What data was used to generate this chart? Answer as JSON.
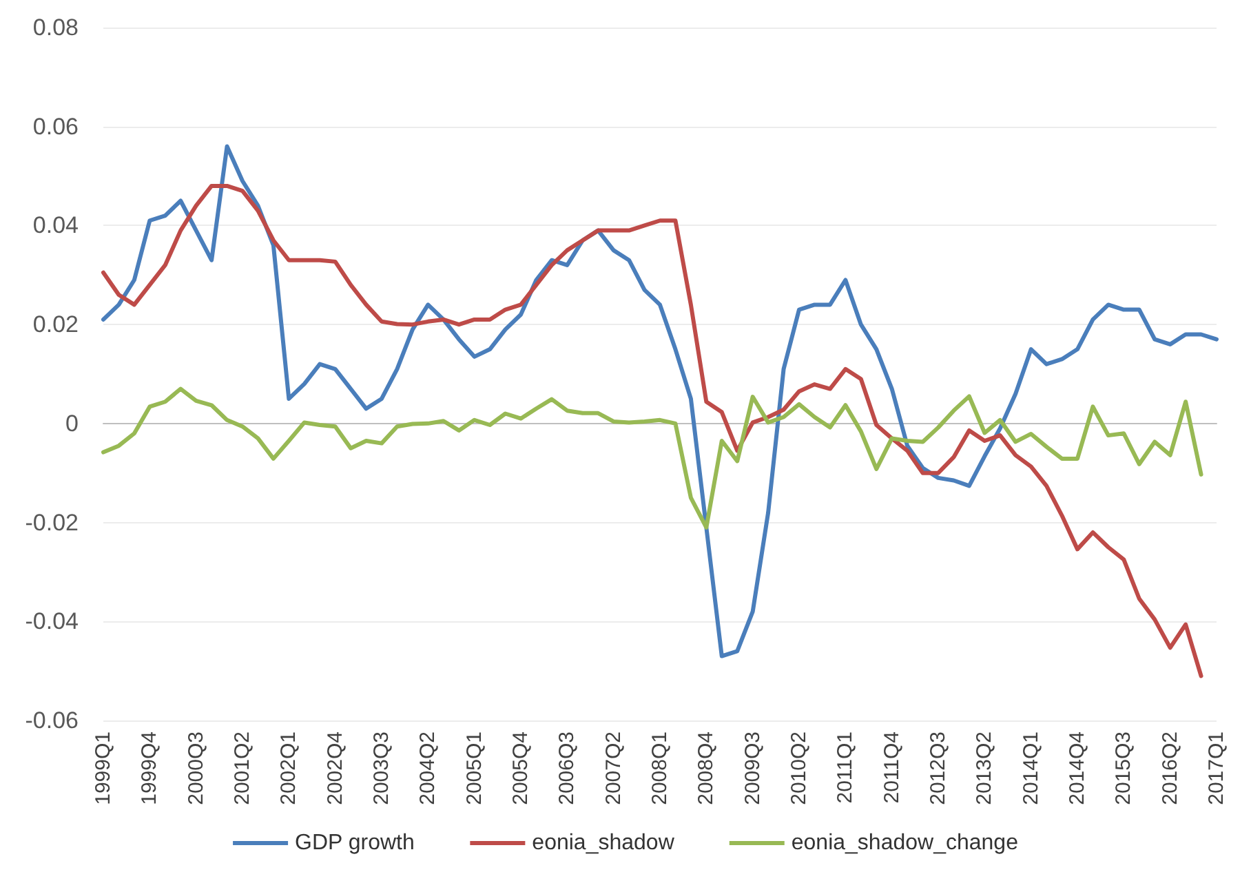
{
  "chart_data": {
    "type": "line",
    "categories": [
      "1999Q1",
      null,
      null,
      "1999Q4",
      null,
      null,
      "2000Q3",
      null,
      null,
      "2001Q2",
      null,
      null,
      "2002Q1",
      null,
      null,
      "2002Q4",
      null,
      null,
      "2003Q3",
      null,
      null,
      "2004Q2",
      null,
      null,
      "2005Q1",
      null,
      null,
      "2005Q4",
      null,
      null,
      "2006Q3",
      null,
      null,
      "2007Q2",
      null,
      null,
      "2008Q1",
      null,
      null,
      "2008Q4",
      null,
      null,
      "2009Q3",
      null,
      null,
      "2010Q2",
      null,
      null,
      "2011Q1",
      null,
      null,
      "2011Q4",
      null,
      null,
      "2012Q3",
      null,
      null,
      "2013Q2",
      null,
      null,
      "2014Q1",
      null,
      null,
      "2014Q4",
      null,
      null,
      "2015Q3",
      null,
      null,
      "2016Q2",
      null,
      null,
      "2017Q1"
    ],
    "series": [
      {
        "name": "GDP growth",
        "color": "#4a7ebb",
        "values": [
          0.021,
          0.024,
          0.029,
          0.041,
          0.042,
          0.045,
          0.039,
          0.033,
          0.056,
          0.049,
          0.044,
          0.036,
          0.005,
          0.008,
          0.012,
          0.011,
          0.007,
          0.003,
          0.005,
          0.011,
          0.019,
          0.024,
          0.021,
          0.017,
          0.0135,
          0.015,
          0.019,
          0.022,
          0.029,
          0.033,
          0.032,
          0.037,
          0.039,
          0.035,
          0.033,
          0.027,
          0.024,
          0.015,
          0.005,
          -0.021,
          -0.047,
          -0.046,
          -0.038,
          -0.018,
          0.011,
          0.023,
          0.024,
          0.024,
          0.029,
          0.02,
          0.015,
          0.007,
          -0.0045,
          -0.009,
          -0.011,
          -0.0115,
          -0.0126,
          -0.0066,
          -0.001,
          0.006,
          0.015,
          0.012,
          0.013,
          0.015,
          0.021,
          0.024,
          0.023,
          0.023,
          0.017,
          0.016,
          0.018,
          0.018,
          0.017
        ]
      },
      {
        "name": "eonia_shadow",
        "color": "#be4b48",
        "values": [
          0.0305,
          0.026,
          0.024,
          0.028,
          0.032,
          0.039,
          0.044,
          0.048,
          0.048,
          0.047,
          0.043,
          0.037,
          0.033,
          0.033,
          0.033,
          0.0327,
          0.028,
          0.024,
          0.0206,
          0.0201,
          0.02,
          0.0206,
          0.021,
          0.02,
          0.021,
          0.021,
          0.023,
          0.024,
          0.028,
          0.032,
          0.035,
          0.037,
          0.039,
          0.039,
          0.039,
          0.04,
          0.041,
          0.041,
          0.024,
          0.0044,
          0.0023,
          -0.0055,
          0.0002,
          0.0013,
          0.0028,
          0.0065,
          0.0079,
          0.007,
          0.011,
          0.009,
          -0.0003,
          -0.003,
          -0.0055,
          -0.01,
          -0.01,
          -0.0068,
          -0.0014,
          -0.0035,
          -0.0024,
          -0.0064,
          -0.0087,
          -0.0126,
          -0.0186,
          -0.0254,
          -0.022,
          -0.025,
          -0.0275,
          -0.0354,
          -0.0396,
          -0.0453,
          -0.0406,
          -0.051,
          null
        ]
      },
      {
        "name": "eonia_shadow_change",
        "color": "#98b954",
        "values": [
          -0.0058,
          -0.0045,
          -0.002,
          0.0034,
          0.0044,
          0.007,
          0.0046,
          0.0037,
          0.0007,
          -0.0006,
          -0.003,
          -0.0071,
          -0.0035,
          0.0002,
          -0.0003,
          -0.0006,
          -0.005,
          -0.0035,
          -0.004,
          -0.0006,
          -0.0001,
          0,
          0.0005,
          -0.0014,
          0.0007,
          -0.0003,
          0.002,
          0.001,
          0.003,
          0.0049,
          0.0026,
          0.0021,
          0.0021,
          0.0004,
          0.0002,
          0.0004,
          0.0007,
          0,
          -0.015,
          -0.021,
          -0.0035,
          -0.0076,
          0.0054,
          0.0002,
          0.0013,
          0.0039,
          0.0013,
          -0.0008,
          0.0037,
          -0.0016,
          -0.0092,
          -0.003,
          -0.0035,
          -0.0037,
          -0.0008,
          0.0026,
          0.0055,
          -0.0019,
          0.0007,
          -0.0037,
          -0.0021,
          -0.0047,
          -0.0071,
          -0.0071,
          0.0034,
          -0.0024,
          -0.002,
          -0.0082,
          -0.0037,
          -0.0064,
          0.0044,
          -0.0103,
          null
        ]
      }
    ],
    "ylim": [
      -0.06,
      0.08
    ],
    "yticks": [
      -0.06,
      -0.04,
      -0.02,
      0,
      0.02,
      0.04,
      0.06,
      0.08
    ],
    "grid": "y",
    "legend": "bottom",
    "marker": "none",
    "line_style": "solid"
  }
}
